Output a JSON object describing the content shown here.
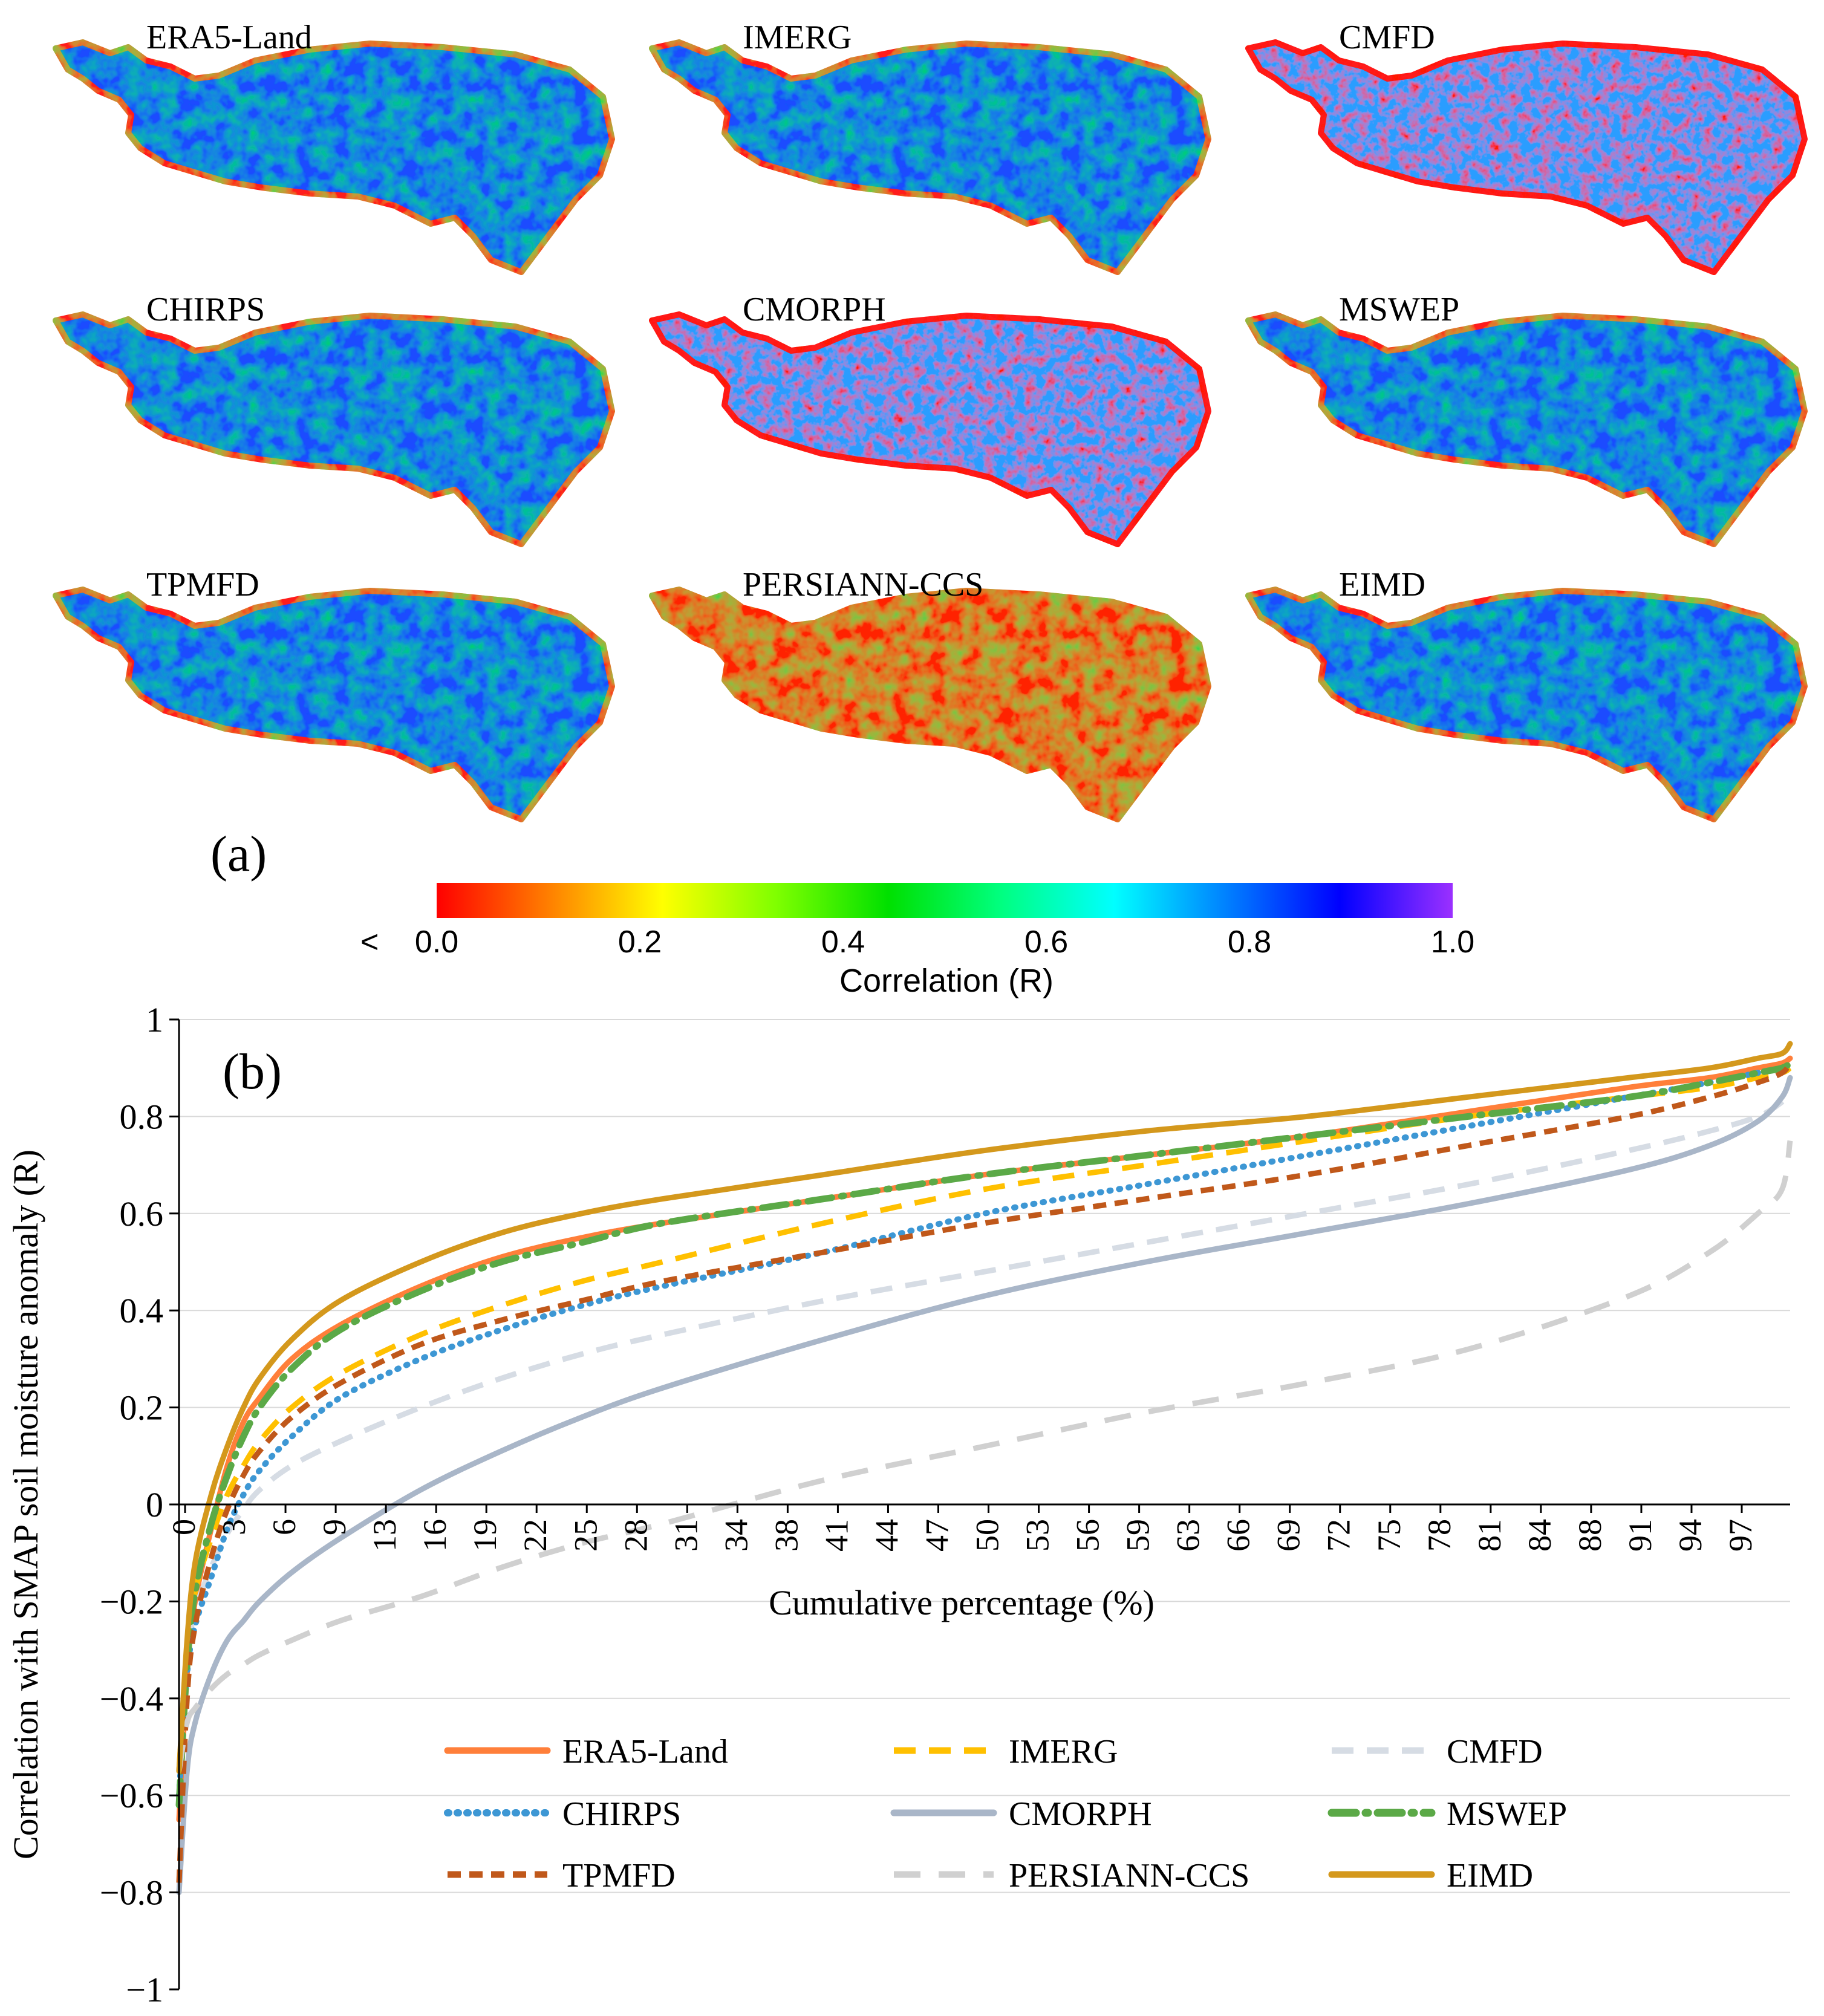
{
  "panel_a": {
    "label": "(a)",
    "maps": [
      {
        "name": "ERA5-Land",
        "style": "blue"
      },
      {
        "name": "IMERG",
        "style": "blue"
      },
      {
        "name": "CMFD",
        "style": "mixed"
      },
      {
        "name": "CHIRPS",
        "style": "blue"
      },
      {
        "name": "CMORPH",
        "style": "mixed"
      },
      {
        "name": "MSWEP",
        "style": "blue"
      },
      {
        "name": "TPMFD",
        "style": "blue"
      },
      {
        "name": "PERSIANN-CCS",
        "style": "red"
      },
      {
        "name": "EIMD",
        "style": "blue"
      }
    ],
    "colorbar": {
      "title": "Correlation (R)",
      "less_than": "<",
      "ticks": [
        "0.0",
        "0.2",
        "0.4",
        "0.6",
        "0.8",
        "1.0"
      ],
      "stops": [
        "#ff0000",
        "#ff8000",
        "#ffff00",
        "#80ff00",
        "#00e000",
        "#00ff80",
        "#00ffff",
        "#0080ff",
        "#0000ff",
        "#9b30ff"
      ]
    }
  },
  "chart_data": {
    "type": "line",
    "label": "(b)",
    "xlabel": "Cumulative percentage (%)",
    "ylabel": "Correlation with SMAP soil moisture anomaly (R)",
    "xlim": [
      0,
      100
    ],
    "ylim": [
      -1,
      1
    ],
    "x_ticks": [
      "0",
      "3",
      "6",
      "9",
      "13",
      "16",
      "19",
      "22",
      "25",
      "28",
      "31",
      "34",
      "38",
      "41",
      "44",
      "47",
      "50",
      "53",
      "56",
      "59",
      "63",
      "66",
      "69",
      "72",
      "75",
      "78",
      "81",
      "84",
      "88",
      "91",
      "94",
      "97"
    ],
    "y_ticks": [
      "1",
      "0.8",
      "0.6",
      "0.4",
      "0.2",
      "0",
      "−0.2",
      "−0.4",
      "−0.6",
      "−0.8",
      "−1"
    ],
    "y_tick_values": [
      1,
      0.8,
      0.6,
      0.4,
      0.2,
      0,
      -0.2,
      -0.4,
      -0.6,
      -0.8,
      -1
    ],
    "x": [
      0,
      0.5,
      1,
      2,
      3,
      4,
      5,
      7,
      10,
      15,
      20,
      25,
      30,
      40,
      50,
      60,
      70,
      80,
      90,
      95,
      98,
      99.5,
      100
    ],
    "series": [
      {
        "name": "ERA5-Land",
        "color": "#ff7f3a",
        "dash": "solid",
        "values": [
          -0.65,
          -0.35,
          -0.2,
          -0.05,
          0.08,
          0.17,
          0.22,
          0.3,
          0.37,
          0.45,
          0.51,
          0.55,
          0.58,
          0.63,
          0.68,
          0.72,
          0.76,
          0.81,
          0.86,
          0.88,
          0.9,
          0.91,
          0.92
        ]
      },
      {
        "name": "IMERG",
        "color": "#ffc000",
        "dash": "dashed",
        "values": [
          -0.55,
          -0.3,
          -0.18,
          -0.07,
          0.02,
          0.08,
          0.13,
          0.2,
          0.27,
          0.35,
          0.41,
          0.46,
          0.5,
          0.58,
          0.65,
          0.7,
          0.75,
          0.8,
          0.84,
          0.86,
          0.88,
          0.89,
          0.9
        ]
      },
      {
        "name": "CMFD",
        "color": "#d6dce4",
        "dash": "dashed",
        "values": [
          -0.55,
          -0.32,
          -0.22,
          -0.13,
          -0.06,
          -0.01,
          0.03,
          0.08,
          0.13,
          0.2,
          0.26,
          0.31,
          0.35,
          0.42,
          0.48,
          0.54,
          0.6,
          0.66,
          0.73,
          0.77,
          0.8,
          0.83,
          0.85
        ]
      },
      {
        "name": "CHIRPS",
        "color": "#3d97d4",
        "dash": "dotted",
        "values": [
          -0.6,
          -0.35,
          -0.25,
          -0.15,
          -0.05,
          0.02,
          0.07,
          0.14,
          0.22,
          0.3,
          0.36,
          0.41,
          0.45,
          0.52,
          0.6,
          0.66,
          0.72,
          0.78,
          0.84,
          0.87,
          0.89,
          0.9,
          0.91
        ]
      },
      {
        "name": "CMORPH",
        "color": "#a9b6c8",
        "dash": "solid",
        "values": [
          -0.8,
          -0.55,
          -0.45,
          -0.35,
          -0.28,
          -0.24,
          -0.2,
          -0.14,
          -0.07,
          0.03,
          0.11,
          0.18,
          0.24,
          0.34,
          0.43,
          0.5,
          0.56,
          0.62,
          0.69,
          0.74,
          0.79,
          0.84,
          0.88
        ]
      },
      {
        "name": "MSWEP",
        "color": "#5ba947",
        "dash": "dashdot",
        "values": [
          -0.62,
          -0.33,
          -0.18,
          -0.04,
          0.06,
          0.14,
          0.2,
          0.28,
          0.36,
          0.44,
          0.5,
          0.54,
          0.58,
          0.63,
          0.68,
          0.72,
          0.76,
          0.8,
          0.84,
          0.87,
          0.89,
          0.9,
          0.91
        ]
      },
      {
        "name": "TPMFD",
        "color": "#c0581a",
        "dash": "shortdash",
        "values": [
          -0.78,
          -0.4,
          -0.25,
          -0.11,
          -0.01,
          0.06,
          0.11,
          0.18,
          0.25,
          0.33,
          0.38,
          0.42,
          0.46,
          0.52,
          0.58,
          0.63,
          0.68,
          0.74,
          0.8,
          0.84,
          0.87,
          0.89,
          0.91
        ]
      },
      {
        "name": "PERSIANN-CCS",
        "color": "#d0d0d0",
        "dash": "longdash",
        "values": [
          -0.55,
          -0.45,
          -0.42,
          -0.38,
          -0.35,
          -0.33,
          -0.31,
          -0.28,
          -0.24,
          -0.19,
          -0.13,
          -0.08,
          -0.04,
          0.05,
          0.12,
          0.19,
          0.25,
          0.32,
          0.43,
          0.52,
          0.6,
          0.65,
          0.75
        ]
      },
      {
        "name": "EIMD",
        "color": "#d4981c",
        "dash": "solid",
        "values": [
          -0.55,
          -0.28,
          -0.12,
          0.02,
          0.12,
          0.2,
          0.26,
          0.34,
          0.42,
          0.5,
          0.56,
          0.6,
          0.63,
          0.68,
          0.73,
          0.77,
          0.8,
          0.84,
          0.88,
          0.9,
          0.92,
          0.93,
          0.95
        ]
      }
    ],
    "legend_placement": "bottom-right, 3 columns"
  }
}
